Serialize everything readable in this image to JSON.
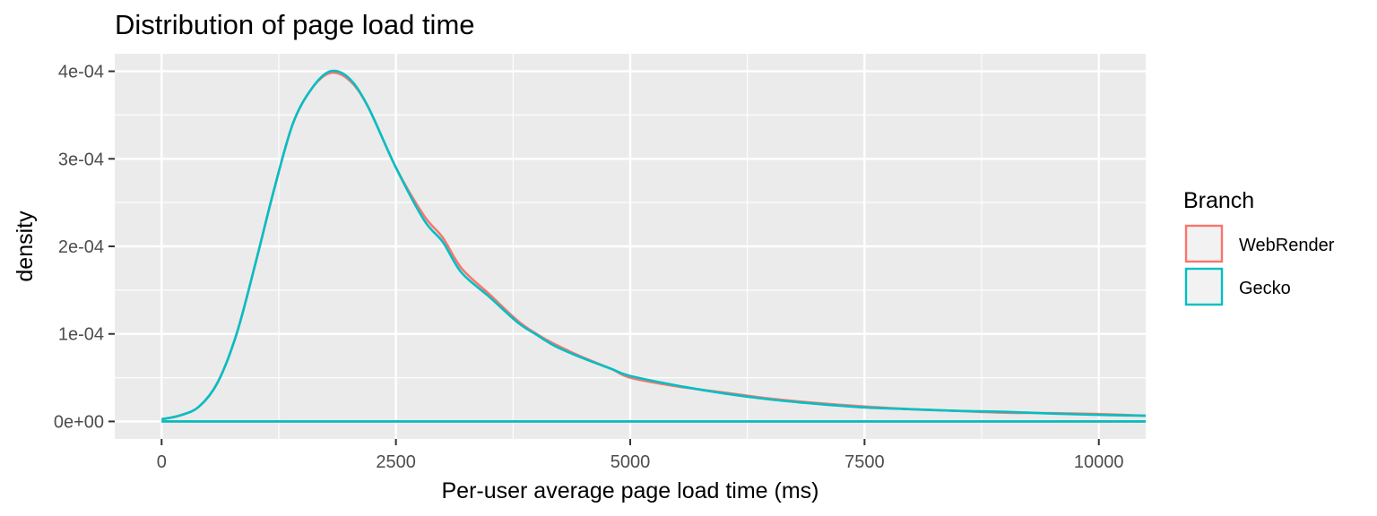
{
  "chart_data": {
    "type": "line",
    "title": "Distribution of page load time",
    "xlabel": "Per-user average page load time (ms)",
    "ylabel": "density",
    "xlim": [
      -500,
      10500
    ],
    "ylim": [
      -2e-05,
      0.00042
    ],
    "x_ticks": [
      0,
      2500,
      5000,
      7500,
      10000
    ],
    "x_tick_labels": [
      "0",
      "2500",
      "5000",
      "7500",
      "10000"
    ],
    "y_ticks": [
      0,
      0.0001,
      0.0002,
      0.0003,
      0.0004
    ],
    "y_tick_labels": [
      "0e+00",
      "1e-04",
      "2e-04",
      "3e-04",
      "4e-04"
    ],
    "grid": true,
    "legend_position": "right",
    "legend_title": "Branch",
    "series": [
      {
        "name": "WebRender",
        "color": "#F8766D",
        "x": [
          0,
          200,
          400,
          600,
          800,
          1000,
          1200,
          1400,
          1600,
          1800,
          2000,
          2200,
          2500,
          2800,
          3000,
          3200,
          3500,
          3800,
          4000,
          4200,
          4500,
          4800,
          5000,
          5500,
          6000,
          6500,
          7000,
          7500,
          8000,
          8500,
          9000,
          9500,
          10000,
          10500
        ],
        "y": [
          2.5e-06,
          7e-06,
          1.7e-05,
          4.5e-05,
          0.0001,
          0.00018,
          0.000265,
          0.00034,
          0.00038,
          0.000398,
          0.00039,
          0.00036,
          0.00029,
          0.000235,
          0.00021,
          0.000175,
          0.000145,
          0.000115,
          0.0001,
          8.8e-05,
          7.3e-05,
          6e-05,
          5e-05,
          4e-05,
          3.3e-05,
          2.6e-05,
          2.1e-05,
          1.7e-05,
          1.4e-05,
          1.2e-05,
          1e-05,
          9.5e-06,
          8.5e-06,
          6.5e-06
        ]
      },
      {
        "name": "Gecko",
        "color": "#00BFC4",
        "x": [
          0,
          200,
          400,
          600,
          800,
          1000,
          1200,
          1400,
          1600,
          1800,
          2000,
          2200,
          2500,
          2800,
          3000,
          3200,
          3500,
          3800,
          4000,
          4200,
          4500,
          4800,
          5000,
          5500,
          6000,
          6500,
          7000,
          7500,
          8000,
          8500,
          9000,
          9500,
          10000,
          10500
        ],
        "y": [
          2.5e-06,
          7e-06,
          1.7e-05,
          4.5e-05,
          0.0001,
          0.00018,
          0.000265,
          0.00034,
          0.00038,
          0.0004,
          0.000392,
          0.00036,
          0.00029,
          0.00023,
          0.000205,
          0.00017,
          0.000142,
          0.000113,
          9.9e-05,
          8.6e-05,
          7.2e-05,
          6e-05,
          5.2e-05,
          4.1e-05,
          3.2e-05,
          2.5e-05,
          2e-05,
          1.6e-05,
          1.4e-05,
          1.2e-05,
          1.1e-05,
          9e-06,
          7.5e-06,
          6.5e-06
        ]
      }
    ]
  }
}
